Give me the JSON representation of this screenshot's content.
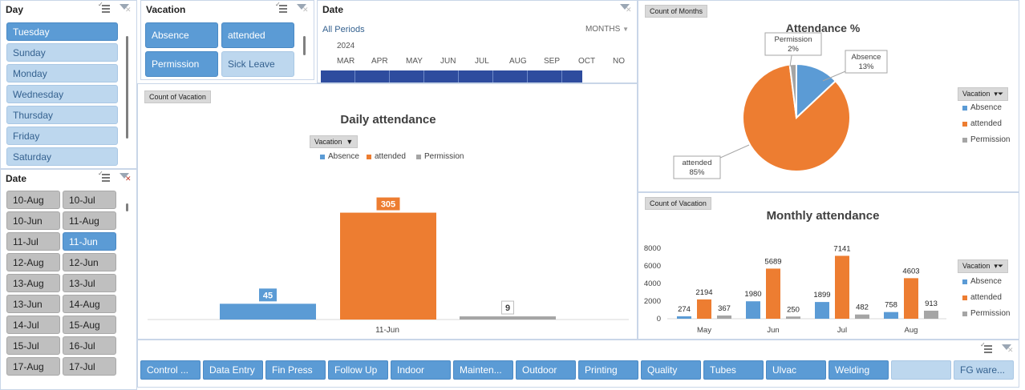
{
  "day_slicer": {
    "title": "Day",
    "items": [
      {
        "label": "Tuesday",
        "selected": true
      },
      {
        "label": "Sunday",
        "selected": false
      },
      {
        "label": "Monday",
        "selected": false
      },
      {
        "label": "Wednesday",
        "selected": false
      },
      {
        "label": "Thursday",
        "selected": false
      },
      {
        "label": "Friday",
        "selected": false
      },
      {
        "label": "Saturday",
        "selected": false
      }
    ]
  },
  "date_slicer": {
    "title": "Date",
    "items": [
      "10-Aug",
      "10-Jul",
      "10-Jun",
      "11-Aug",
      "11-Jul",
      "11-Jun",
      "12-Aug",
      "12-Jun",
      "13-Aug",
      "13-Jul",
      "13-Jun",
      "14-Aug",
      "14-Jul",
      "15-Aug",
      "15-Jul",
      "16-Jul",
      "17-Aug",
      "17-Jul"
    ],
    "selected": "11-Jun"
  },
  "vacation_slicer": {
    "title": "Vacation",
    "items": [
      {
        "label": "Absence",
        "selected": true
      },
      {
        "label": "attended",
        "selected": true
      },
      {
        "label": "Permission",
        "selected": true
      },
      {
        "label": "Sick Leave",
        "selected": false
      }
    ]
  },
  "timeline": {
    "title": "Date",
    "period_label": "All Periods",
    "year": "2024",
    "level": "MONTHS",
    "months": [
      "MAR",
      "APR",
      "MAY",
      "JUN",
      "JUL",
      "AUG",
      "SEP",
      "OCT",
      "NO"
    ]
  },
  "daily_chart": {
    "field_button": "Count of Vacation",
    "filter_button": "Vacation",
    "chart_data": {
      "type": "bar",
      "title": "Daily attendance",
      "categories": [
        "11-Jun"
      ],
      "series": [
        {
          "name": "Absence",
          "values": [
            45
          ],
          "color": "#5b9bd5"
        },
        {
          "name": "attended",
          "values": [
            305
          ],
          "color": "#ed7d31"
        },
        {
          "name": "Permission",
          "values": [
            9
          ],
          "color": "#a5a5a5"
        }
      ],
      "ylim": [
        0,
        320
      ],
      "legend": "top",
      "grid": false
    }
  },
  "pie_chart": {
    "field_button": "Count of Months",
    "filter_button": "Vacation",
    "chart_data": {
      "type": "pie",
      "title": "Attendance %",
      "slices": [
        {
          "name": "Absence",
          "value": 13,
          "label": "13%",
          "color": "#5b9bd5"
        },
        {
          "name": "attended",
          "value": 85,
          "label": "85%",
          "color": "#ed7d31"
        },
        {
          "name": "Permission",
          "value": 2,
          "label": "2%",
          "color": "#a5a5a5"
        }
      ],
      "legend": "right"
    }
  },
  "monthly_chart": {
    "field_button": "Count of Vacation",
    "filter_button": "Vacation",
    "chart_data": {
      "type": "bar",
      "title": "Monthly attendance",
      "categories": [
        "May",
        "Jun",
        "Jul",
        "Aug"
      ],
      "series": [
        {
          "name": "Absence",
          "values": [
            274,
            1980,
            1899,
            758
          ],
          "color": "#5b9bd5"
        },
        {
          "name": "attended",
          "values": [
            2194,
            5689,
            7141,
            4603
          ],
          "color": "#ed7d31"
        },
        {
          "name": "Permission",
          "values": [
            367,
            250,
            482,
            913
          ],
          "color": "#a5a5a5"
        }
      ],
      "ylim": [
        0,
        8000
      ],
      "yticks": [
        "0",
        "2000",
        "4000",
        "6000",
        "8000"
      ],
      "legend": "right",
      "grid": false
    }
  },
  "department_slicer": {
    "items": [
      {
        "label": "Control ...",
        "selected": true
      },
      {
        "label": "Data Entry",
        "selected": true
      },
      {
        "label": "Fin Press",
        "selected": true
      },
      {
        "label": "Follow Up",
        "selected": true
      },
      {
        "label": "Indoor",
        "selected": true
      },
      {
        "label": "Mainten...",
        "selected": true
      },
      {
        "label": "Outdoor",
        "selected": true
      },
      {
        "label": "Printing",
        "selected": true
      },
      {
        "label": "Quality",
        "selected": true
      },
      {
        "label": "Tubes",
        "selected": true
      },
      {
        "label": "Ulvac",
        "selected": true
      },
      {
        "label": "Welding",
        "selected": true
      },
      {
        "label": "",
        "selected": false
      },
      {
        "label": "FG ware...",
        "selected": false
      }
    ]
  }
}
